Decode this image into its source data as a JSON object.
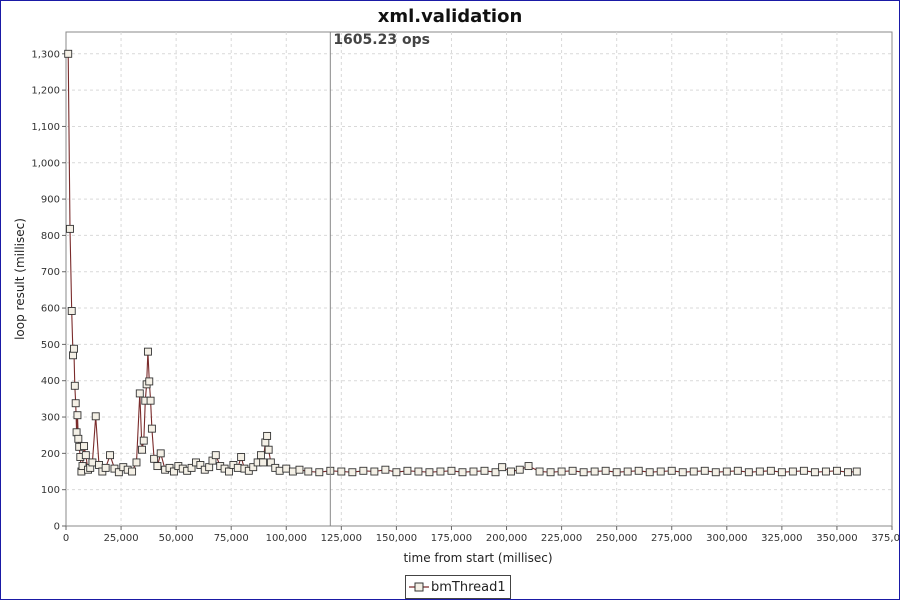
{
  "chart_data": {
    "type": "line",
    "title": "xml.validation",
    "xlabel": "time from start (millisec)",
    "ylabel": "loop result (millisec)",
    "xlim": [
      0,
      375000
    ],
    "ylim": [
      0,
      1360
    ],
    "x_ticks": [
      0,
      25000,
      50000,
      75000,
      100000,
      125000,
      150000,
      175000,
      200000,
      225000,
      250000,
      275000,
      300000,
      325000,
      350000,
      375000
    ],
    "x_tick_labels": [
      "0",
      "25,000",
      "50,000",
      "75,000",
      "100,000",
      "125,000",
      "150,000",
      "175,000",
      "200,000",
      "225,000",
      "250,000",
      "275,000",
      "300,000",
      "325,000",
      "350,000",
      "375,000"
    ],
    "y_ticks": [
      0,
      100,
      200,
      300,
      400,
      500,
      600,
      700,
      800,
      900,
      1000,
      1100,
      1200,
      1300
    ],
    "y_tick_labels": [
      "0",
      "100",
      "200",
      "300",
      "400",
      "500",
      "600",
      "700",
      "800",
      "900",
      "1,000",
      "1,100",
      "1,200",
      "1,300"
    ],
    "grid": true,
    "legend_position": "bottom-center",
    "annotation": {
      "x": 120000,
      "label": "1605.23 ops"
    },
    "series": [
      {
        "name": "bmThread1",
        "color": "#7a2b2b",
        "marker": "square",
        "x": [
          1000,
          1800,
          2600,
          3200,
          3600,
          4000,
          4400,
          4800,
          5200,
          5600,
          6000,
          6500,
          7000,
          7500,
          8200,
          9000,
          10000,
          11000,
          12000,
          13500,
          15000,
          16500,
          18000,
          20000,
          22000,
          24000,
          26000,
          28000,
          30000,
          32000,
          33500,
          34500,
          35300,
          36000,
          36600,
          37200,
          37800,
          38400,
          39000,
          40000,
          41500,
          43000,
          45000,
          47000,
          49000,
          51000,
          53000,
          55000,
          57000,
          59000,
          61000,
          63000,
          65000,
          66500,
          68000,
          70000,
          72000,
          74000,
          76000,
          78000,
          79500,
          81000,
          83000,
          85000,
          87000,
          88500,
          89500,
          90500,
          91300,
          92000,
          93000,
          95000,
          97000,
          100000,
          103000,
          106000,
          110000,
          115000,
          120000,
          125000,
          130000,
          135000,
          140000,
          145000,
          150000,
          155000,
          160000,
          165000,
          170000,
          175000,
          180000,
          185000,
          190000,
          195000,
          198000,
          202000,
          206000,
          210000,
          215000,
          220000,
          225000,
          230000,
          235000,
          240000,
          245000,
          250000,
          255000,
          260000,
          265000,
          270000,
          275000,
          280000,
          285000,
          290000,
          295000,
          300000,
          305000,
          310000,
          315000,
          320000,
          325000,
          330000,
          335000,
          340000,
          345000,
          350000,
          355000,
          359000
        ],
        "values": [
          1300,
          818,
          592,
          470,
          488,
          386,
          338,
          258,
          305,
          240,
          218,
          190,
          150,
          165,
          220,
          195,
          155,
          160,
          175,
          302,
          168,
          150,
          160,
          195,
          158,
          148,
          162,
          155,
          150,
          175,
          365,
          210,
          235,
          345,
          390,
          480,
          398,
          345,
          268,
          185,
          165,
          200,
          155,
          160,
          150,
          165,
          158,
          152,
          160,
          175,
          168,
          155,
          162,
          180,
          195,
          165,
          158,
          150,
          168,
          160,
          190,
          158,
          152,
          162,
          175,
          195,
          175,
          230,
          248,
          210,
          175,
          160,
          152,
          158,
          150,
          155,
          150,
          148,
          152,
          150,
          148,
          152,
          150,
          155,
          148,
          152,
          150,
          148,
          150,
          152,
          148,
          150,
          152,
          148,
          162,
          150,
          155,
          165,
          150,
          148,
          150,
          152,
          148,
          150,
          152,
          148,
          150,
          152,
          148,
          150,
          152,
          148,
          150,
          152,
          148,
          150,
          152,
          148,
          150,
          152,
          148,
          150,
          152,
          148,
          150,
          152,
          148,
          150
        ]
      }
    ]
  }
}
